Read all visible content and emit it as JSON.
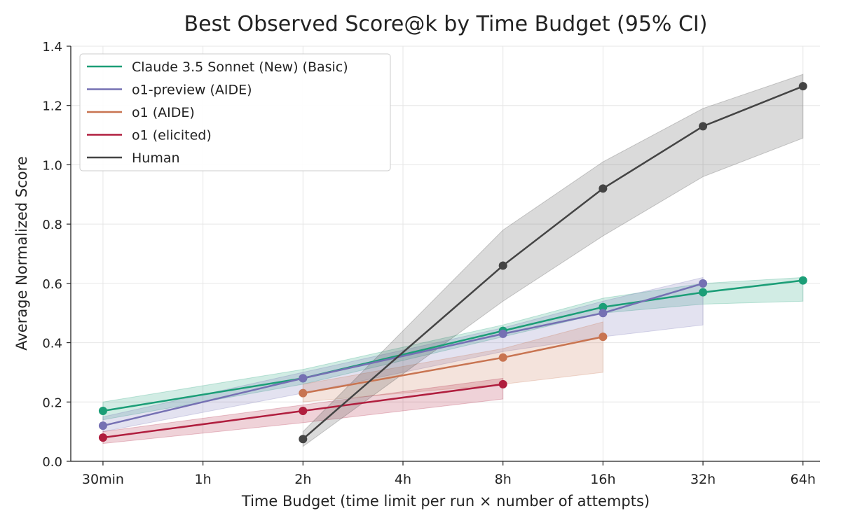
{
  "chart_data": {
    "type": "line",
    "title": "Best Observed Score@k by Time Budget (95% CI)",
    "xlabel": "Time Budget (time limit per run × number of attempts)",
    "ylabel": "Average Normalized Score",
    "x_scale": "log2",
    "x_ticks": [
      {
        "value": 0.5,
        "label": "30min"
      },
      {
        "value": 1,
        "label": "1h"
      },
      {
        "value": 2,
        "label": "2h"
      },
      {
        "value": 4,
        "label": "4h"
      },
      {
        "value": 8,
        "label": "8h"
      },
      {
        "value": 16,
        "label": "16h"
      },
      {
        "value": 32,
        "label": "32h"
      },
      {
        "value": 64,
        "label": "64h"
      }
    ],
    "xlim_hours": [
      0.4,
      72
    ],
    "ylim": [
      0,
      1.4
    ],
    "y_ticks": [
      {
        "value": 0.0,
        "label": "0.0"
      },
      {
        "value": 0.2,
        "label": "0.2"
      },
      {
        "value": 0.4,
        "label": "0.4"
      },
      {
        "value": 0.6,
        "label": "0.6"
      },
      {
        "value": 0.8,
        "label": "0.8"
      },
      {
        "value": 1.0,
        "label": "1.0"
      },
      {
        "value": 1.2,
        "label": "1.2"
      },
      {
        "value": 1.4,
        "label": "1.4"
      }
    ],
    "grid": true,
    "legend_position": "top-left",
    "series": [
      {
        "name": "Claude 3.5 Sonnet (New) (Basic)",
        "color": "#1b9e77",
        "x": [
          0.5,
          2,
          8,
          16,
          32,
          64
        ],
        "y": [
          0.17,
          0.28,
          0.44,
          0.52,
          0.57,
          0.61
        ],
        "ci_low": [
          0.14,
          0.26,
          0.42,
          0.5,
          0.53,
          0.54
        ],
        "ci_high": [
          0.2,
          0.31,
          0.46,
          0.55,
          0.6,
          0.62
        ]
      },
      {
        "name": "o1-preview (AIDE)",
        "color": "#7570b3",
        "x": [
          0.5,
          2,
          8,
          16,
          32
        ],
        "y": [
          0.12,
          0.28,
          0.43,
          0.5,
          0.6
        ],
        "ci_low": [
          0.1,
          0.23,
          0.37,
          0.42,
          0.46
        ],
        "ci_high": [
          0.15,
          0.3,
          0.45,
          0.54,
          0.62
        ]
      },
      {
        "name": "o1 (AIDE)",
        "color": "#c87451",
        "x": [
          2,
          8,
          16
        ],
        "y": [
          0.23,
          0.35,
          0.42
        ],
        "ci_low": [
          0.2,
          0.26,
          0.3
        ],
        "ci_high": [
          0.26,
          0.38,
          0.47
        ]
      },
      {
        "name": "o1 (elicited)",
        "color": "#b01e3e",
        "x": [
          0.5,
          2,
          8
        ],
        "y": [
          0.08,
          0.17,
          0.26
        ],
        "ci_low": [
          0.06,
          0.13,
          0.21
        ],
        "ci_high": [
          0.1,
          0.19,
          0.28
        ]
      },
      {
        "name": "Human",
        "color": "#444444",
        "x": [
          2,
          8,
          16,
          32,
          64
        ],
        "y": [
          0.075,
          0.66,
          0.92,
          1.13,
          1.265
        ],
        "ci_low": [
          0.05,
          0.54,
          0.76,
          0.96,
          1.09
        ],
        "ci_high": [
          0.1,
          0.78,
          1.01,
          1.19,
          1.305
        ]
      }
    ]
  }
}
